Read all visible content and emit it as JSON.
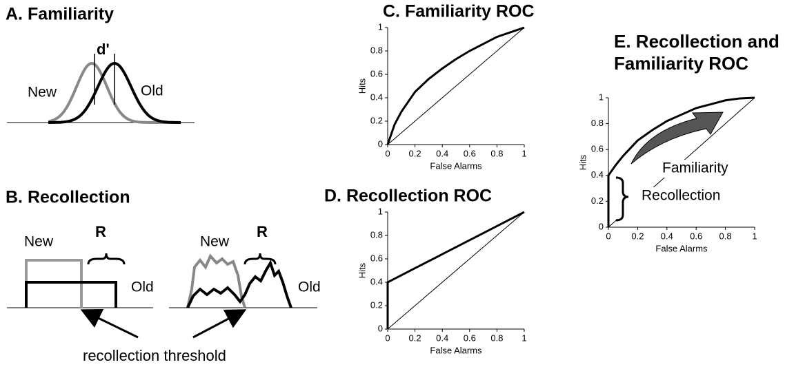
{
  "panels": {
    "a": {
      "title": "A. Familiarity",
      "d_label": "d'",
      "new": "New",
      "old": "Old"
    },
    "b": {
      "title": "B. Recollection",
      "left_new": "New",
      "left_r": "R",
      "left_old": "Old",
      "right_new": "New",
      "right_r": "R",
      "right_old": "Old",
      "threshold": "recollection threshold"
    }
  },
  "chart_data": [
    {
      "type": "line",
      "title": "C. Familiarity ROC",
      "xlabel": "False Alarms",
      "ylabel": "Hits",
      "xlim": [
        0,
        1
      ],
      "ylim": [
        0,
        1
      ],
      "xticks": [
        0,
        0.2,
        0.4,
        0.6,
        0.8,
        1
      ],
      "yticks": [
        0,
        0.2,
        0.4,
        0.6,
        0.8,
        1
      ],
      "series": [
        {
          "color": "#000000",
          "x": [
            0,
            0.05,
            0.1,
            0.2,
            0.3,
            0.4,
            0.5,
            0.6,
            0.7,
            0.8,
            0.9,
            1
          ],
          "values": [
            0,
            0.17,
            0.28,
            0.45,
            0.56,
            0.65,
            0.73,
            0.8,
            0.86,
            0.92,
            0.96,
            1
          ]
        },
        {
          "color": "#000000",
          "x": [
            0,
            1
          ],
          "values": [
            0,
            1
          ]
        }
      ]
    },
    {
      "type": "line",
      "title": "D. Recollection ROC",
      "xlabel": "False Alarms",
      "ylabel": "Hits",
      "xlim": [
        0,
        1
      ],
      "ylim": [
        0,
        1
      ],
      "xticks": [
        0,
        0.2,
        0.4,
        0.6,
        0.8,
        1
      ],
      "yticks": [
        0,
        0.2,
        0.4,
        0.6,
        0.8,
        1
      ],
      "series": [
        {
          "color": "#000000",
          "x": [
            0,
            0,
            0.2,
            0.4,
            0.6,
            0.8,
            1
          ],
          "values": [
            0,
            0.4,
            0.52,
            0.64,
            0.76,
            0.88,
            1
          ]
        },
        {
          "color": "#000000",
          "x": [
            0,
            1
          ],
          "values": [
            0,
            1
          ]
        }
      ]
    },
    {
      "type": "line",
      "title": "E. Recollection and Familiarity ROC",
      "xlabel": "False Alarms",
      "ylabel": "Hits",
      "xlim": [
        0,
        1
      ],
      "ylim": [
        0,
        1
      ],
      "xticks": [
        0,
        0.2,
        0.4,
        0.6,
        0.8,
        1
      ],
      "yticks": [
        0,
        0.2,
        0.4,
        0.6,
        0.8,
        1
      ],
      "annotations": [
        "Familiarity",
        "Recollection"
      ],
      "series": [
        {
          "color": "#000000",
          "x": [
            0,
            0,
            0.05,
            0.1,
            0.2,
            0.3,
            0.4,
            0.5,
            0.6,
            0.7,
            0.8,
            0.9,
            1
          ],
          "values": [
            0,
            0.4,
            0.48,
            0.55,
            0.67,
            0.75,
            0.82,
            0.87,
            0.92,
            0.95,
            0.98,
            0.995,
            1
          ]
        },
        {
          "color": "#000000",
          "x": [
            0,
            1
          ],
          "values": [
            0,
            1
          ]
        }
      ]
    }
  ]
}
